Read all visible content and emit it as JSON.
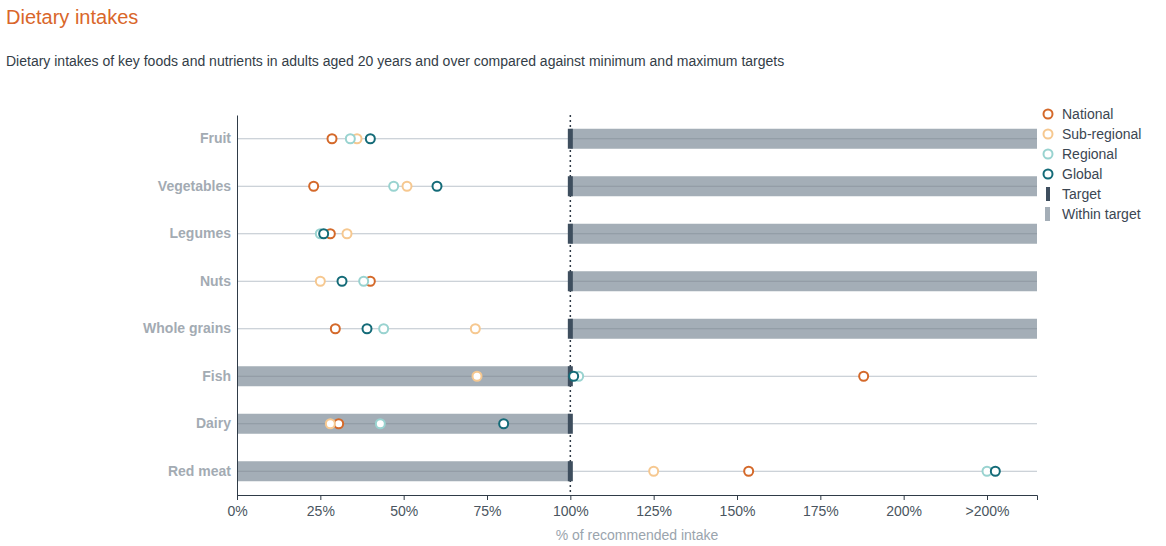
{
  "chart_data": {
    "type": "dot",
    "orientation": "horizontal",
    "title": "Dietary intakes",
    "subtitle": "Dietary intakes of key foods and nutrients in adults aged 20 years and over compared against minimum and maximum targets",
    "x_label": "% of recommended intake",
    "categories": [
      "Fruit",
      "Vegetables",
      "Legumes",
      "Nuts",
      "Whole grains",
      "Fish",
      "Dairy",
      "Red meat"
    ],
    "series": [
      {
        "name": "National",
        "color": "#d4692a",
        "marker": "circle-open",
        "values": [
          28.5,
          23,
          28,
          40,
          29.5,
          188,
          30.5,
          153.5
        ]
      },
      {
        "name": "Sub-regional",
        "color": "#f6c890",
        "marker": "circle-open",
        "values": [
          36,
          51,
          33,
          25,
          71.5,
          72,
          28,
          125
        ]
      },
      {
        "name": "Regional",
        "color": "#99d3d0",
        "marker": "circle-open",
        "values": [
          34,
          47,
          25,
          38,
          44,
          102.5,
          43,
          225
        ]
      },
      {
        "name": "Global",
        "color": "#146b78",
        "marker": "circle-open",
        "values": [
          40,
          60,
          26,
          31.5,
          39,
          101,
          80,
          227.5
        ]
      }
    ],
    "targets": [
      100,
      100,
      100,
      100,
      100,
      100,
      100,
      100
    ],
    "target_ranges": [
      [
        100,
        240
      ],
      [
        100,
        240
      ],
      [
        100,
        240
      ],
      [
        100,
        240
      ],
      [
        100,
        240
      ],
      [
        0,
        100
      ],
      [
        0,
        100
      ],
      [
        0,
        100
      ]
    ],
    "reference_x": 100,
    "target_name": "Target",
    "within_target_name": "Within target",
    "xlim": [
      0,
      240
    ],
    "xticks": [
      {
        "value": 0,
        "label": "0%"
      },
      {
        "value": 25,
        "label": "25%"
      },
      {
        "value": 50,
        "label": "50%"
      },
      {
        "value": 75,
        "label": "75%"
      },
      {
        "value": 100,
        "label": "100%"
      },
      {
        "value": 125,
        "label": "125%"
      },
      {
        "value": 150,
        "label": "150%"
      },
      {
        "value": 175,
        "label": "175%"
      },
      {
        "value": 200,
        "label": "200%"
      },
      {
        "value": 225,
        "label": ">200%"
      }
    ],
    "legend": "top-right",
    "grid": false
  }
}
